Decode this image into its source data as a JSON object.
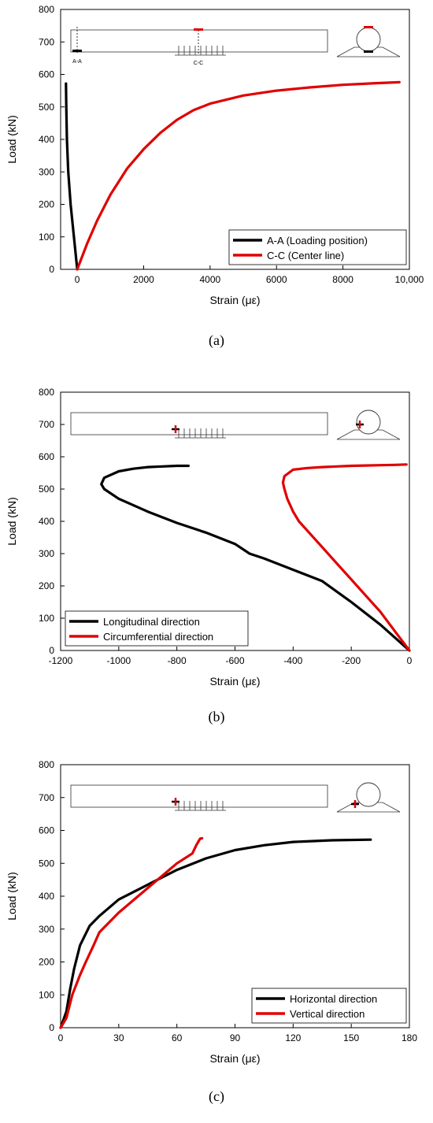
{
  "chart_data": [
    {
      "type": "line",
      "panel_label": "(a)",
      "xlabel": "Strain (με)",
      "ylabel": "Load (kN)",
      "xlim": [
        -500,
        10000
      ],
      "ylim": [
        0,
        800
      ],
      "x_ticks": [
        0,
        2000,
        4000,
        6000,
        8000,
        10000
      ],
      "x_tick_labels": [
        "0",
        "2000",
        "4000",
        "6000",
        "8000",
        "10,000"
      ],
      "y_ticks": [
        0,
        100,
        200,
        300,
        400,
        500,
        600,
        700,
        800
      ],
      "grid": false,
      "legend_position": "bottom-right",
      "inset_labels": [
        "A-A",
        "C-C"
      ],
      "series": [
        {
          "name": "A-A (Loading position)",
          "color": "#000000",
          "x": [
            0,
            -100,
            -200,
            -270,
            -310,
            -330,
            -340
          ],
          "y": [
            0,
            100,
            200,
            300,
            400,
            500,
            572
          ]
        },
        {
          "name": "C-C (Center line)",
          "color": "#e00000",
          "x": [
            0,
            300,
            600,
            1000,
            1500,
            2000,
            2500,
            3000,
            3500,
            4000,
            5000,
            6000,
            7000,
            8000,
            9000,
            9700
          ],
          "y": [
            0,
            80,
            150,
            230,
            310,
            370,
            420,
            460,
            490,
            510,
            535,
            550,
            560,
            568,
            573,
            576
          ]
        }
      ]
    },
    {
      "type": "line",
      "panel_label": "(b)",
      "xlabel": "Strain (με)",
      "ylabel": "Load (kN)",
      "xlim": [
        -1200,
        0
      ],
      "ylim": [
        0,
        800
      ],
      "x_ticks": [
        -1200,
        -1000,
        -800,
        -600,
        -400,
        -200,
        0
      ],
      "x_tick_labels": [
        "-1200",
        "-1000",
        "-800",
        "-600",
        "-400",
        "-200",
        "0"
      ],
      "y_ticks": [
        0,
        100,
        200,
        300,
        400,
        500,
        600,
        700,
        800
      ],
      "grid": false,
      "legend_position": "bottom-left",
      "series": [
        {
          "name": "Longitudinal direction",
          "color": "#000000",
          "x": [
            0,
            -100,
            -200,
            -300,
            -400,
            -500,
            -550,
            -600,
            -700,
            -800,
            -900,
            -1000,
            -1050,
            -1060,
            -1050,
            -1000,
            -950,
            -900,
            -850,
            -800,
            -760
          ],
          "y": [
            0,
            80,
            150,
            215,
            250,
            285,
            300,
            330,
            365,
            395,
            430,
            470,
            500,
            515,
            535,
            555,
            563,
            568,
            570,
            572,
            572
          ]
        },
        {
          "name": "Circumferential direction",
          "color": "#e00000",
          "x": [
            0,
            -50,
            -100,
            -150,
            -200,
            -250,
            -300,
            -350,
            -380,
            -400,
            -420,
            -430,
            -435,
            -430,
            -400,
            -350,
            -300,
            -250,
            -200,
            -150,
            -100,
            -50,
            -10
          ],
          "y": [
            0,
            60,
            120,
            170,
            220,
            270,
            320,
            370,
            400,
            430,
            470,
            500,
            520,
            540,
            560,
            565,
            568,
            570,
            572,
            573,
            574,
            575,
            576
          ]
        }
      ]
    },
    {
      "type": "line",
      "panel_label": "(c)",
      "xlabel": "Strain (με)",
      "ylabel": "Load (kN)",
      "xlim": [
        0,
        180
      ],
      "ylim": [
        0,
        800
      ],
      "x_ticks": [
        0,
        30,
        60,
        90,
        120,
        150,
        180
      ],
      "x_tick_labels": [
        "0",
        "30",
        "60",
        "90",
        "120",
        "150",
        "180"
      ],
      "y_ticks": [
        0,
        100,
        200,
        300,
        400,
        500,
        600,
        700,
        800
      ],
      "grid": false,
      "legend_position": "bottom-right",
      "series": [
        {
          "name": "Horizontal direction",
          "color": "#000000",
          "x": [
            0,
            3,
            5,
            7,
            10,
            15,
            20,
            30,
            40,
            50,
            60,
            75,
            90,
            105,
            120,
            140,
            160
          ],
          "y": [
            0,
            50,
            120,
            180,
            250,
            310,
            340,
            390,
            420,
            450,
            480,
            515,
            540,
            555,
            565,
            570,
            572
          ]
        },
        {
          "name": "Vertical direction",
          "color": "#e00000",
          "x": [
            0,
            3,
            6,
            10,
            13,
            17,
            20,
            25,
            30,
            40,
            50,
            60,
            68,
            70,
            72,
            73
          ],
          "y": [
            0,
            30,
            100,
            160,
            200,
            250,
            290,
            320,
            350,
            400,
            450,
            500,
            530,
            555,
            575,
            576
          ]
        }
      ]
    }
  ]
}
